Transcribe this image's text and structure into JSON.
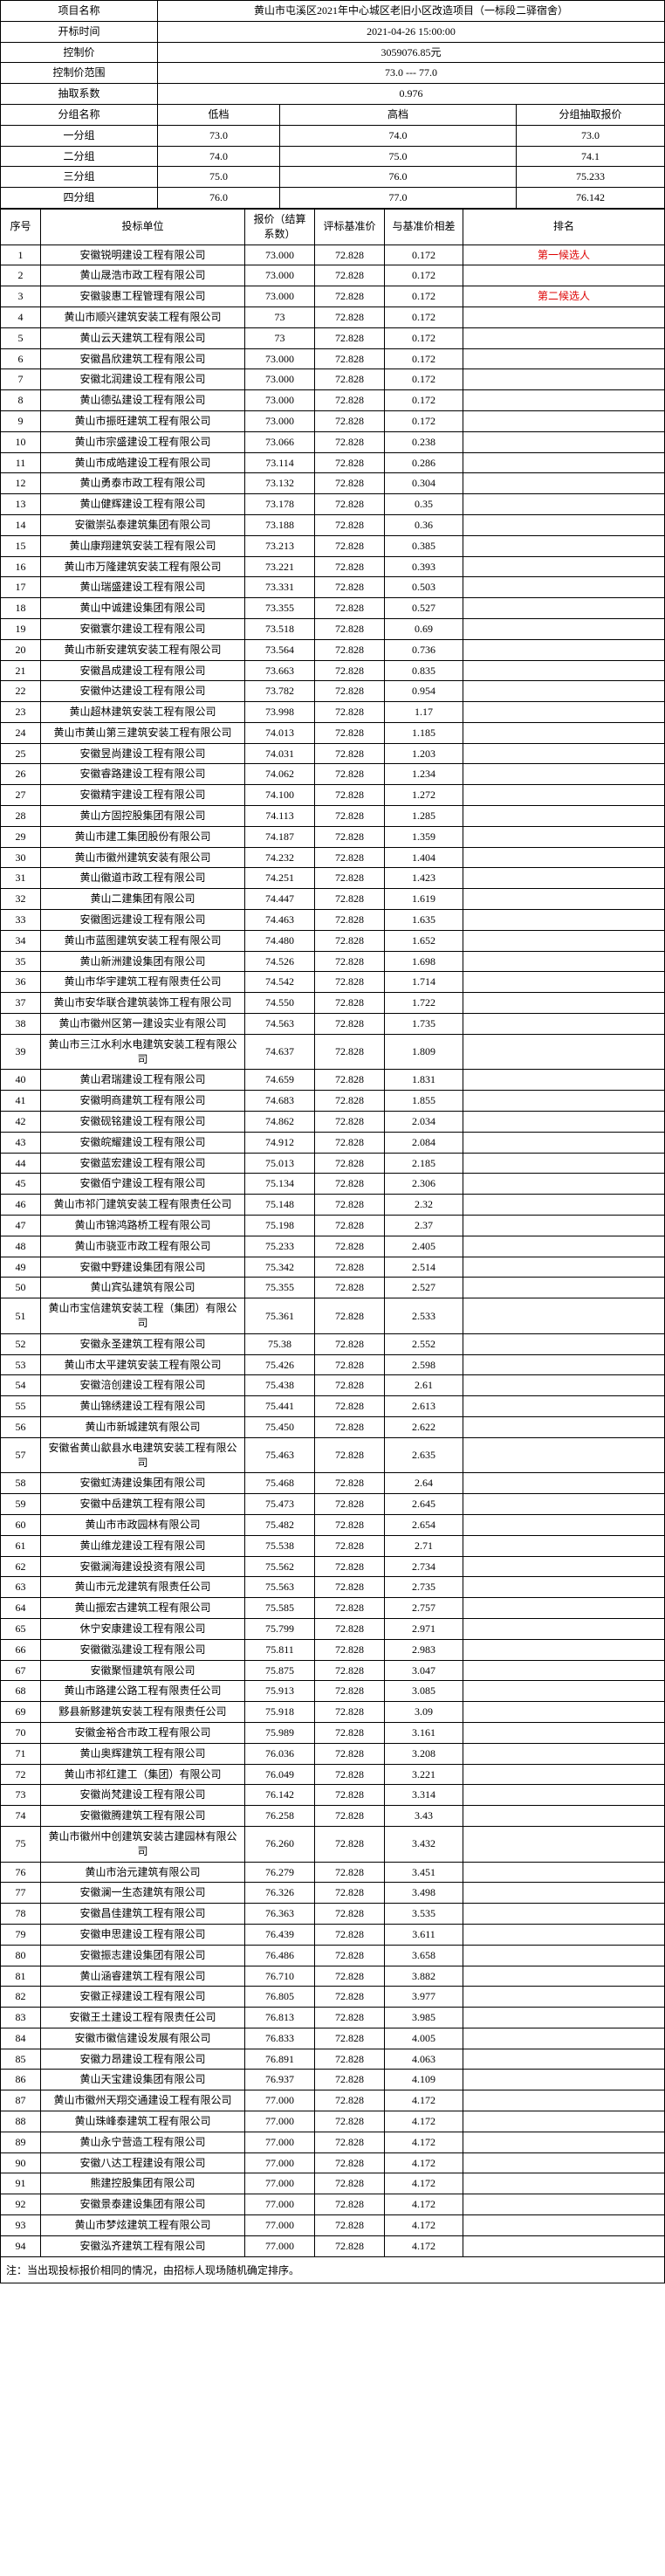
{
  "header": {
    "project_name_label": "项目名称",
    "project_name": "黄山市屯溪区2021年中心城区老旧小区改造项目（一标段二驿宿舍）",
    "open_time_label": "开标时间",
    "open_time": "2021-04-26 15:00:00",
    "control_price_label": "控制价",
    "control_price": "3059076.85元",
    "control_range_label": "控制价范围",
    "control_range": "73.0 --- 77.0",
    "coef_label": "抽取系数",
    "coef": "0.976"
  },
  "group_header": {
    "group_name_label": "分组名称",
    "low_label": "低档",
    "high_label": "高档",
    "group_price_label": "分组抽取报价"
  },
  "groups": [
    {
      "name": "一分组",
      "low": "73.0",
      "high": "74.0",
      "price": "73.0"
    },
    {
      "name": "二分组",
      "low": "74.0",
      "high": "75.0",
      "price": "74.1"
    },
    {
      "name": "三分组",
      "low": "75.0",
      "high": "76.0",
      "price": "75.233"
    },
    {
      "name": "四分组",
      "low": "76.0",
      "high": "77.0",
      "price": "76.142"
    }
  ],
  "columns": {
    "seq": "序号",
    "unit": "投标单位",
    "offer": "报价（结算系数）",
    "base": "评标基准价",
    "diff": "与基准价相差",
    "rank": "排名"
  },
  "rank_labels": {
    "first": "第一候选人",
    "second": "第二候选人"
  },
  "rows": [
    {
      "n": 1,
      "unit": "安徽锐明建设工程有限公司",
      "offer": "73.000",
      "base": "72.828",
      "diff": "0.172",
      "rank": "first"
    },
    {
      "n": 2,
      "unit": "黄山晟浩市政工程有限公司",
      "offer": "73.000",
      "base": "72.828",
      "diff": "0.172",
      "rank": ""
    },
    {
      "n": 3,
      "unit": "安徽骏惠工程管理有限公司",
      "offer": "73.000",
      "base": "72.828",
      "diff": "0.172",
      "rank": "second"
    },
    {
      "n": 4,
      "unit": "黄山市顺兴建筑安装工程有限公司",
      "offer": "73",
      "base": "72.828",
      "diff": "0.172",
      "rank": ""
    },
    {
      "n": 5,
      "unit": "黄山云天建筑工程有限公司",
      "offer": "73",
      "base": "72.828",
      "diff": "0.172",
      "rank": ""
    },
    {
      "n": 6,
      "unit": "安徽昌欣建筑工程有限公司",
      "offer": "73.000",
      "base": "72.828",
      "diff": "0.172",
      "rank": ""
    },
    {
      "n": 7,
      "unit": "安徽北润建设工程有限公司",
      "offer": "73.000",
      "base": "72.828",
      "diff": "0.172",
      "rank": ""
    },
    {
      "n": 8,
      "unit": "黄山德弘建设工程有限公司",
      "offer": "73.000",
      "base": "72.828",
      "diff": "0.172",
      "rank": ""
    },
    {
      "n": 9,
      "unit": "黄山市振旺建筑工程有限公司",
      "offer": "73.000",
      "base": "72.828",
      "diff": "0.172",
      "rank": ""
    },
    {
      "n": 10,
      "unit": "黄山市宗盛建设工程有限公司",
      "offer": "73.066",
      "base": "72.828",
      "diff": "0.238",
      "rank": ""
    },
    {
      "n": 11,
      "unit": "黄山市成皓建设工程有限公司",
      "offer": "73.114",
      "base": "72.828",
      "diff": "0.286",
      "rank": ""
    },
    {
      "n": 12,
      "unit": "黄山勇泰市政工程有限公司",
      "offer": "73.132",
      "base": "72.828",
      "diff": "0.304",
      "rank": ""
    },
    {
      "n": 13,
      "unit": "黄山健辉建设工程有限公司",
      "offer": "73.178",
      "base": "72.828",
      "diff": "0.35",
      "rank": ""
    },
    {
      "n": 14,
      "unit": "安徽崇弘泰建筑集团有限公司",
      "offer": "73.188",
      "base": "72.828",
      "diff": "0.36",
      "rank": ""
    },
    {
      "n": 15,
      "unit": "黄山康翔建筑安装工程有限公司",
      "offer": "73.213",
      "base": "72.828",
      "diff": "0.385",
      "rank": ""
    },
    {
      "n": 16,
      "unit": "黄山市万隆建筑安装工程有限公司",
      "offer": "73.221",
      "base": "72.828",
      "diff": "0.393",
      "rank": ""
    },
    {
      "n": 17,
      "unit": "黄山瑞盛建设工程有限公司",
      "offer": "73.331",
      "base": "72.828",
      "diff": "0.503",
      "rank": ""
    },
    {
      "n": 18,
      "unit": "黄山中诚建设集团有限公司",
      "offer": "73.355",
      "base": "72.828",
      "diff": "0.527",
      "rank": ""
    },
    {
      "n": 19,
      "unit": "安徽寰尔建设工程有限公司",
      "offer": "73.518",
      "base": "72.828",
      "diff": "0.69",
      "rank": ""
    },
    {
      "n": 20,
      "unit": "黄山市新安建筑安装工程有限公司",
      "offer": "73.564",
      "base": "72.828",
      "diff": "0.736",
      "rank": ""
    },
    {
      "n": 21,
      "unit": "安徽昌成建设工程有限公司",
      "offer": "73.663",
      "base": "72.828",
      "diff": "0.835",
      "rank": ""
    },
    {
      "n": 22,
      "unit": "安徽仲达建设工程有限公司",
      "offer": "73.782",
      "base": "72.828",
      "diff": "0.954",
      "rank": ""
    },
    {
      "n": 23,
      "unit": "黄山超林建筑安装工程有限公司",
      "offer": "73.998",
      "base": "72.828",
      "diff": "1.17",
      "rank": ""
    },
    {
      "n": 24,
      "unit": "黄山市黄山第三建筑安装工程有限公司",
      "offer": "74.013",
      "base": "72.828",
      "diff": "1.185",
      "rank": ""
    },
    {
      "n": 25,
      "unit": "安徽昱尚建设工程有限公司",
      "offer": "74.031",
      "base": "72.828",
      "diff": "1.203",
      "rank": ""
    },
    {
      "n": 26,
      "unit": "安徽睿路建设工程有限公司",
      "offer": "74.062",
      "base": "72.828",
      "diff": "1.234",
      "rank": ""
    },
    {
      "n": 27,
      "unit": "安徽精宇建设工程有限公司",
      "offer": "74.100",
      "base": "72.828",
      "diff": "1.272",
      "rank": ""
    },
    {
      "n": 28,
      "unit": "黄山方固控股集团有限公司",
      "offer": "74.113",
      "base": "72.828",
      "diff": "1.285",
      "rank": ""
    },
    {
      "n": 29,
      "unit": "黄山市建工集团股份有限公司",
      "offer": "74.187",
      "base": "72.828",
      "diff": "1.359",
      "rank": ""
    },
    {
      "n": 30,
      "unit": "黄山市徽州建筑安装有限公司",
      "offer": "74.232",
      "base": "72.828",
      "diff": "1.404",
      "rank": ""
    },
    {
      "n": 31,
      "unit": "黄山徽道市政工程有限公司",
      "offer": "74.251",
      "base": "72.828",
      "diff": "1.423",
      "rank": ""
    },
    {
      "n": 32,
      "unit": "黄山二建集团有限公司",
      "offer": "74.447",
      "base": "72.828",
      "diff": "1.619",
      "rank": ""
    },
    {
      "n": 33,
      "unit": "安徽图远建设工程有限公司",
      "offer": "74.463",
      "base": "72.828",
      "diff": "1.635",
      "rank": ""
    },
    {
      "n": 34,
      "unit": "黄山市蓝图建筑安装工程有限公司",
      "offer": "74.480",
      "base": "72.828",
      "diff": "1.652",
      "rank": ""
    },
    {
      "n": 35,
      "unit": "黄山新洲建设集团有限公司",
      "offer": "74.526",
      "base": "72.828",
      "diff": "1.698",
      "rank": ""
    },
    {
      "n": 36,
      "unit": "黄山市华宇建筑工程有限责任公司",
      "offer": "74.542",
      "base": "72.828",
      "diff": "1.714",
      "rank": ""
    },
    {
      "n": 37,
      "unit": "黄山市安华联合建筑装饰工程有限公司",
      "offer": "74.550",
      "base": "72.828",
      "diff": "1.722",
      "rank": ""
    },
    {
      "n": 38,
      "unit": "黄山市徽州区第一建设实业有限公司",
      "offer": "74.563",
      "base": "72.828",
      "diff": "1.735",
      "rank": ""
    },
    {
      "n": 39,
      "unit": "黄山市三江水利水电建筑安装工程有限公司",
      "offer": "74.637",
      "base": "72.828",
      "diff": "1.809",
      "rank": ""
    },
    {
      "n": 40,
      "unit": "黄山君瑞建设工程有限公司",
      "offer": "74.659",
      "base": "72.828",
      "diff": "1.831",
      "rank": ""
    },
    {
      "n": 41,
      "unit": "安徽明商建筑工程有限公司",
      "offer": "74.683",
      "base": "72.828",
      "diff": "1.855",
      "rank": ""
    },
    {
      "n": 42,
      "unit": "安徽砚铭建设工程有限公司",
      "offer": "74.862",
      "base": "72.828",
      "diff": "2.034",
      "rank": ""
    },
    {
      "n": 43,
      "unit": "安徽皖耀建设工程有限公司",
      "offer": "74.912",
      "base": "72.828",
      "diff": "2.084",
      "rank": ""
    },
    {
      "n": 44,
      "unit": "安徽蓝宏建设工程有限公司",
      "offer": "75.013",
      "base": "72.828",
      "diff": "2.185",
      "rank": ""
    },
    {
      "n": 45,
      "unit": "安徽佰宁建设工程有限公司",
      "offer": "75.134",
      "base": "72.828",
      "diff": "2.306",
      "rank": ""
    },
    {
      "n": 46,
      "unit": "黄山市祁门建筑安装工程有限责任公司",
      "offer": "75.148",
      "base": "72.828",
      "diff": "2.32",
      "rank": ""
    },
    {
      "n": 47,
      "unit": "黄山市锦鸿路桥工程有限公司",
      "offer": "75.198",
      "base": "72.828",
      "diff": "2.37",
      "rank": ""
    },
    {
      "n": 48,
      "unit": "黄山市骁亚市政工程有限公司",
      "offer": "75.233",
      "base": "72.828",
      "diff": "2.405",
      "rank": ""
    },
    {
      "n": 49,
      "unit": "安徽中野建设集团有限公司",
      "offer": "75.342",
      "base": "72.828",
      "diff": "2.514",
      "rank": ""
    },
    {
      "n": 50,
      "unit": "黄山宾弘建筑有限公司",
      "offer": "75.355",
      "base": "72.828",
      "diff": "2.527",
      "rank": ""
    },
    {
      "n": 51,
      "unit": "黄山市宝信建筑安装工程（集团）有限公司",
      "offer": "75.361",
      "base": "72.828",
      "diff": "2.533",
      "rank": ""
    },
    {
      "n": 52,
      "unit": "安徽永圣建筑工程有限公司",
      "offer": "75.38",
      "base": "72.828",
      "diff": "2.552",
      "rank": ""
    },
    {
      "n": 53,
      "unit": "黄山市太平建筑安装工程有限公司",
      "offer": "75.426",
      "base": "72.828",
      "diff": "2.598",
      "rank": ""
    },
    {
      "n": 54,
      "unit": "安徽涪创建设工程有限公司",
      "offer": "75.438",
      "base": "72.828",
      "diff": "2.61",
      "rank": ""
    },
    {
      "n": 55,
      "unit": "黄山锦绣建设工程有限公司",
      "offer": "75.441",
      "base": "72.828",
      "diff": "2.613",
      "rank": ""
    },
    {
      "n": 56,
      "unit": "黄山市新城建筑有限公司",
      "offer": "75.450",
      "base": "72.828",
      "diff": "2.622",
      "rank": ""
    },
    {
      "n": 57,
      "unit": "安徽省黄山歙县水电建筑安装工程有限公司",
      "offer": "75.463",
      "base": "72.828",
      "diff": "2.635",
      "rank": ""
    },
    {
      "n": 58,
      "unit": "安徽虹涛建设集团有限公司",
      "offer": "75.468",
      "base": "72.828",
      "diff": "2.64",
      "rank": ""
    },
    {
      "n": 59,
      "unit": "安徽中岳建筑工程有限公司",
      "offer": "75.473",
      "base": "72.828",
      "diff": "2.645",
      "rank": ""
    },
    {
      "n": 60,
      "unit": "黄山市市政园林有限公司",
      "offer": "75.482",
      "base": "72.828",
      "diff": "2.654",
      "rank": ""
    },
    {
      "n": 61,
      "unit": "黄山维龙建设工程有限公司",
      "offer": "75.538",
      "base": "72.828",
      "diff": "2.71",
      "rank": ""
    },
    {
      "n": 62,
      "unit": "安徽澜海建设投资有限公司",
      "offer": "75.562",
      "base": "72.828",
      "diff": "2.734",
      "rank": ""
    },
    {
      "n": 63,
      "unit": "黄山市元龙建筑有限责任公司",
      "offer": "75.563",
      "base": "72.828",
      "diff": "2.735",
      "rank": ""
    },
    {
      "n": 64,
      "unit": "黄山振宏古建筑工程有限公司",
      "offer": "75.585",
      "base": "72.828",
      "diff": "2.757",
      "rank": ""
    },
    {
      "n": 65,
      "unit": "休宁安康建设工程有限公司",
      "offer": "75.799",
      "base": "72.828",
      "diff": "2.971",
      "rank": ""
    },
    {
      "n": 66,
      "unit": "安徽徽泓建设工程有限公司",
      "offer": "75.811",
      "base": "72.828",
      "diff": "2.983",
      "rank": ""
    },
    {
      "n": 67,
      "unit": "安徽聚恒建筑有限公司",
      "offer": "75.875",
      "base": "72.828",
      "diff": "3.047",
      "rank": ""
    },
    {
      "n": 68,
      "unit": "黄山市路建公路工程有限责任公司",
      "offer": "75.913",
      "base": "72.828",
      "diff": "3.085",
      "rank": ""
    },
    {
      "n": 69,
      "unit": "黟县新黟建筑安装工程有限责任公司",
      "offer": "75.918",
      "base": "72.828",
      "diff": "3.09",
      "rank": ""
    },
    {
      "n": 70,
      "unit": "安徽金裕合市政工程有限公司",
      "offer": "75.989",
      "base": "72.828",
      "diff": "3.161",
      "rank": ""
    },
    {
      "n": 71,
      "unit": "黄山奥辉建筑工程有限公司",
      "offer": "76.036",
      "base": "72.828",
      "diff": "3.208",
      "rank": ""
    },
    {
      "n": 72,
      "unit": "黄山市祁红建工（集团）有限公司",
      "offer": "76.049",
      "base": "72.828",
      "diff": "3.221",
      "rank": ""
    },
    {
      "n": 73,
      "unit": "安徽尚梵建设工程有限公司",
      "offer": "76.142",
      "base": "72.828",
      "diff": "3.314",
      "rank": ""
    },
    {
      "n": 74,
      "unit": "安徽徽腾建筑工程有限公司",
      "offer": "76.258",
      "base": "72.828",
      "diff": "3.43",
      "rank": ""
    },
    {
      "n": 75,
      "unit": "黄山市徽州中创建筑安装古建园林有限公司",
      "offer": "76.260",
      "base": "72.828",
      "diff": "3.432",
      "rank": ""
    },
    {
      "n": 76,
      "unit": "黄山市治元建筑有限公司",
      "offer": "76.279",
      "base": "72.828",
      "diff": "3.451",
      "rank": ""
    },
    {
      "n": 77,
      "unit": "安徽澜一生态建筑有限公司",
      "offer": "76.326",
      "base": "72.828",
      "diff": "3.498",
      "rank": ""
    },
    {
      "n": 78,
      "unit": "安徽昌佳建筑工程有限公司",
      "offer": "76.363",
      "base": "72.828",
      "diff": "3.535",
      "rank": ""
    },
    {
      "n": 79,
      "unit": "安徽申思建设工程有限公司",
      "offer": "76.439",
      "base": "72.828",
      "diff": "3.611",
      "rank": ""
    },
    {
      "n": 80,
      "unit": "安徽振志建设集团有限公司",
      "offer": "76.486",
      "base": "72.828",
      "diff": "3.658",
      "rank": ""
    },
    {
      "n": 81,
      "unit": "黄山涵睿建筑工程有限公司",
      "offer": "76.710",
      "base": "72.828",
      "diff": "3.882",
      "rank": ""
    },
    {
      "n": 82,
      "unit": "安徽正禄建设工程有限公司",
      "offer": "76.805",
      "base": "72.828",
      "diff": "3.977",
      "rank": ""
    },
    {
      "n": 83,
      "unit": "安徽王土建设工程有限责任公司",
      "offer": "76.813",
      "base": "72.828",
      "diff": "3.985",
      "rank": ""
    },
    {
      "n": 84,
      "unit": "安徽市徽信建设发展有限公司",
      "offer": "76.833",
      "base": "72.828",
      "diff": "4.005",
      "rank": ""
    },
    {
      "n": 85,
      "unit": "安徽力昂建设工程有限公司",
      "offer": "76.891",
      "base": "72.828",
      "diff": "4.063",
      "rank": ""
    },
    {
      "n": 86,
      "unit": "黄山天宝建设集团有限公司",
      "offer": "76.937",
      "base": "72.828",
      "diff": "4.109",
      "rank": ""
    },
    {
      "n": 87,
      "unit": "黄山市徽州天翔交通建设工程有限公司",
      "offer": "77.000",
      "base": "72.828",
      "diff": "4.172",
      "rank": ""
    },
    {
      "n": 88,
      "unit": "黄山珠峰泰建筑工程有限公司",
      "offer": "77.000",
      "base": "72.828",
      "diff": "4.172",
      "rank": ""
    },
    {
      "n": 89,
      "unit": "黄山永宁营造工程有限公司",
      "offer": "77.000",
      "base": "72.828",
      "diff": "4.172",
      "rank": ""
    },
    {
      "n": 90,
      "unit": "安徽八达工程建设有限公司",
      "offer": "77.000",
      "base": "72.828",
      "diff": "4.172",
      "rank": ""
    },
    {
      "n": 91,
      "unit": "熊建控股集团有限公司",
      "offer": "77.000",
      "base": "72.828",
      "diff": "4.172",
      "rank": ""
    },
    {
      "n": 92,
      "unit": "安徽景泰建设集团有限公司",
      "offer": "77.000",
      "base": "72.828",
      "diff": "4.172",
      "rank": ""
    },
    {
      "n": 93,
      "unit": "黄山市梦炫建筑工程有限公司",
      "offer": "77.000",
      "base": "72.828",
      "diff": "4.172",
      "rank": ""
    },
    {
      "n": 94,
      "unit": "安徽泓齐建筑工程有限公司",
      "offer": "77.000",
      "base": "72.828",
      "diff": "4.172",
      "rank": ""
    }
  ],
  "note": "注：当出现投标报价相同的情况，由招标人现场随机确定排序。"
}
